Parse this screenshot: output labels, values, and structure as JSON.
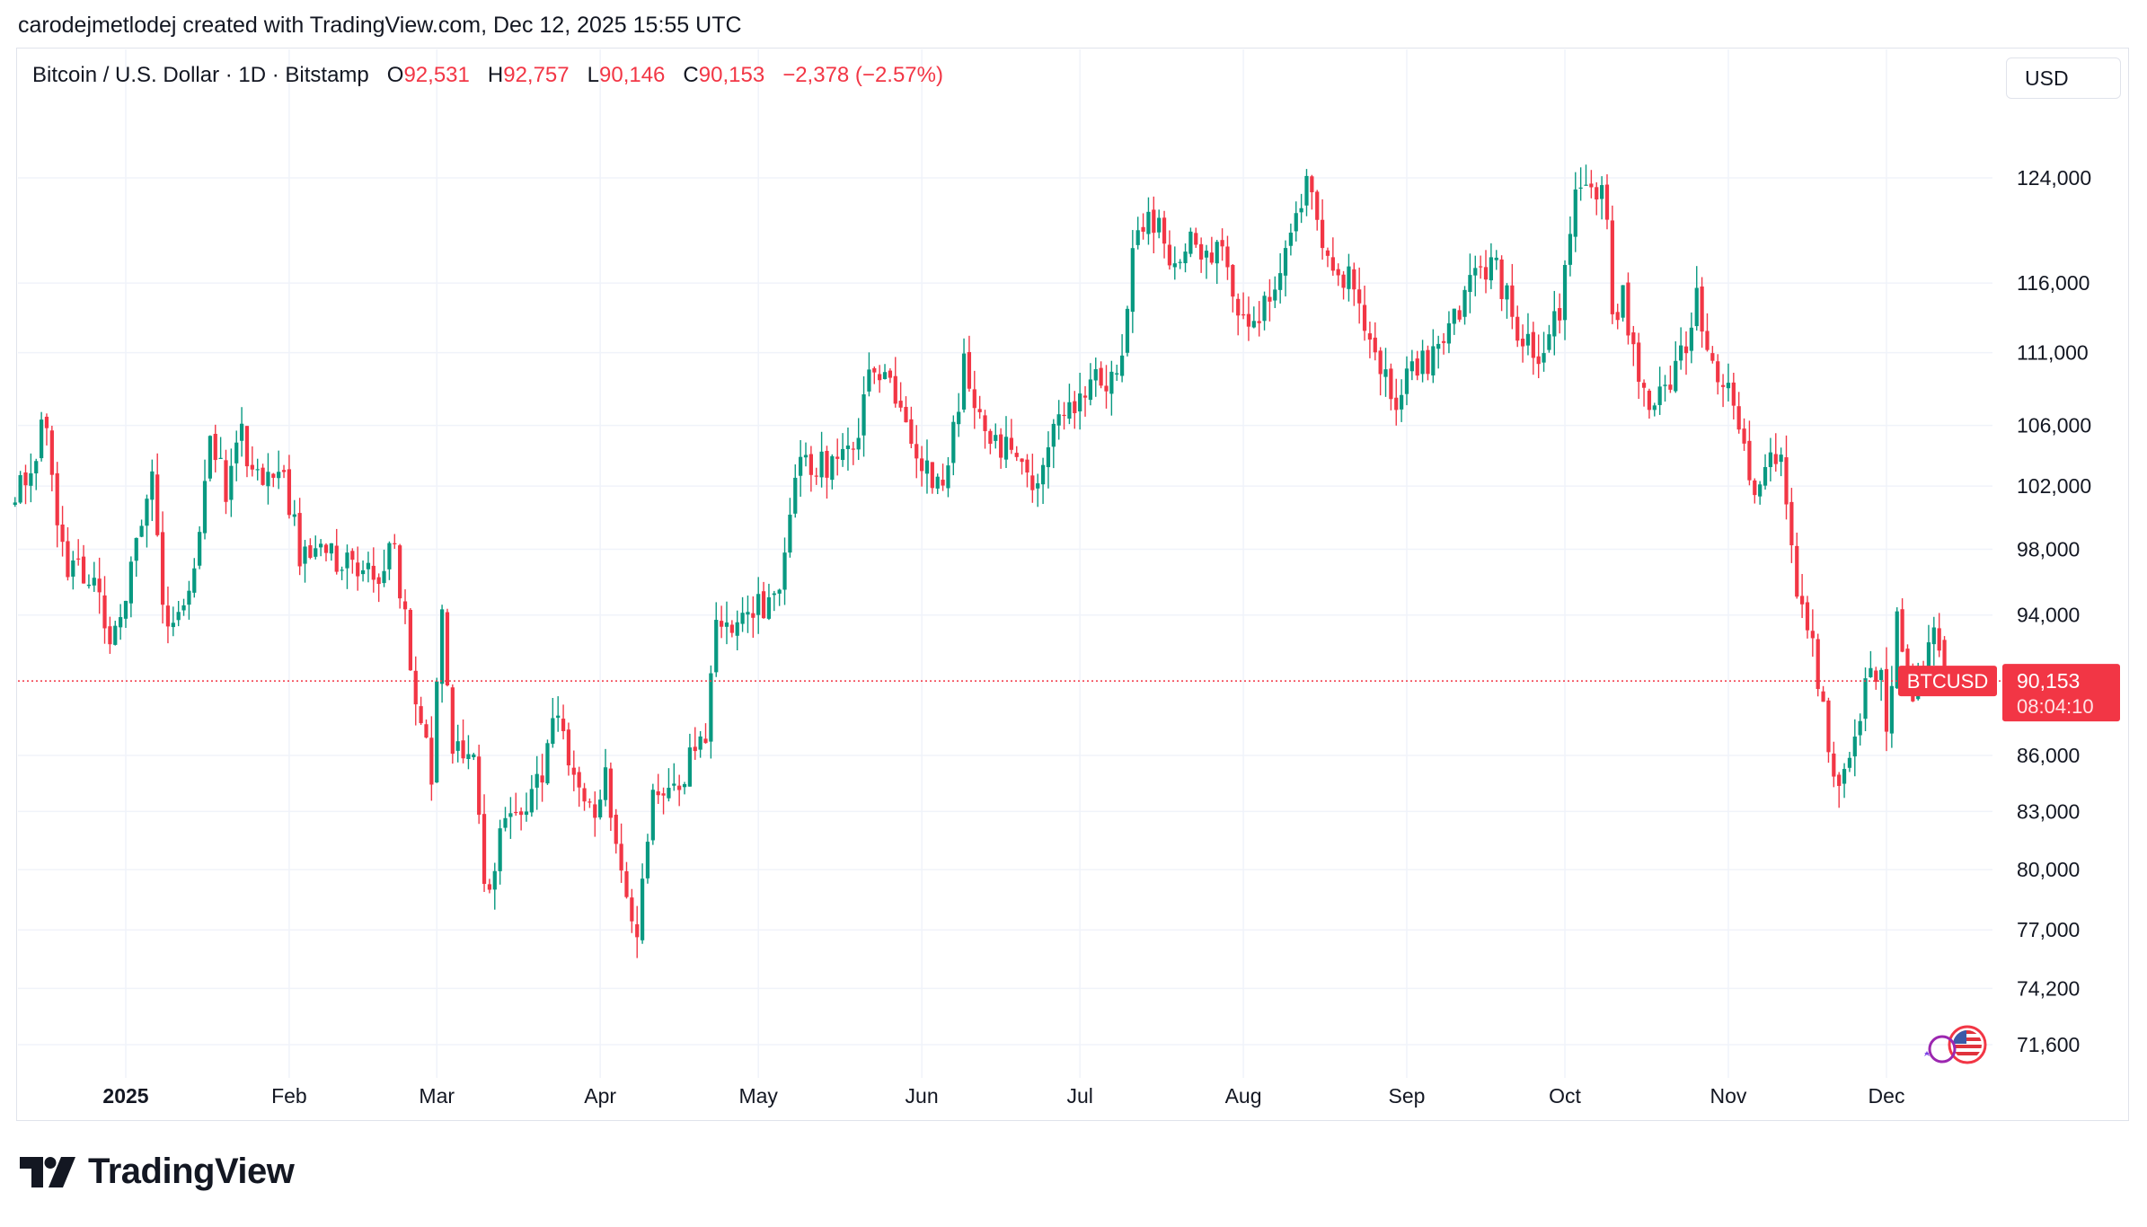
{
  "header": {
    "attribution": "carodejmetlodej created with TradingView.com, Dec 12, 2025 15:55 UTC"
  },
  "legend": {
    "symbol": "Bitcoin / U.S. Dollar · 1D · Bitstamp",
    "o_label": "O",
    "o_value": "92,531",
    "h_label": "H",
    "h_value": "92,757",
    "l_label": "L",
    "l_value": "90,146",
    "c_label": "C",
    "c_value": "90,153",
    "change": "−2,378 (−2.57%)"
  },
  "currency_button": "USD",
  "brand": {
    "name": "TradingView"
  },
  "colors": {
    "up": "#089981",
    "down": "#f23645",
    "grid": "#f0f3fa",
    "text": "#131722"
  },
  "icons": {
    "logo": "tradingview-logo-icon",
    "flag": "us-flag-icon",
    "moon": "crescent-moon-icon"
  },
  "chart_data": {
    "type": "candlestick",
    "title": "Bitcoin / U.S. Dollar · 1D · Bitstamp",
    "y_scale": "log",
    "ylim": [
      69500,
      130000
    ],
    "y_ticks": [
      71600,
      74200,
      77000,
      80000,
      83000,
      86000,
      94000,
      98000,
      102000,
      106000,
      111000,
      116000,
      124000
    ],
    "y_tick_labels": [
      "71,600",
      "74,200",
      "77,000",
      "80,000",
      "83,000",
      "86,000",
      "94,000",
      "98,000",
      "102,000",
      "106,000",
      "111,000",
      "116,000",
      "124,000"
    ],
    "x_tick_labels": [
      "2025",
      "Feb",
      "Mar",
      "Apr",
      "May",
      "Jun",
      "Jul",
      "Aug",
      "Sep",
      "Oct",
      "Nov",
      "Dec"
    ],
    "x_tick_dates": [
      "2025-01-01",
      "2025-02-01",
      "2025-03-01",
      "2025-04-01",
      "2025-05-01",
      "2025-06-01",
      "2025-07-01",
      "2025-08-01",
      "2025-09-01",
      "2025-10-01",
      "2025-11-01",
      "2025-12-01"
    ],
    "date_range": [
      "2024-12-11",
      "2025-12-12"
    ],
    "last_price": {
      "symbol": "BTCUSD",
      "value": 90153,
      "label": "90,153",
      "countdown": "08:04:10"
    },
    "close_path": [
      [
        "2024-12-11",
        101000
      ],
      [
        "2024-12-17",
        106500
      ],
      [
        "2024-12-20",
        97500
      ],
      [
        "2024-12-26",
        95500
      ],
      [
        "2024-12-30",
        92500
      ],
      [
        "2025-01-06",
        102000
      ],
      [
        "2025-01-09",
        92500
      ],
      [
        "2025-01-13",
        94500
      ],
      [
        "2025-01-17",
        104500
      ],
      [
        "2025-01-20",
        102000
      ],
      [
        "2025-01-22",
        106000
      ],
      [
        "2025-01-27",
        102000
      ],
      [
        "2025-01-31",
        102500
      ],
      [
        "2025-02-03",
        98000
      ],
      [
        "2025-02-10",
        97500
      ],
      [
        "2025-02-18",
        96000
      ],
      [
        "2025-02-21",
        98000
      ],
      [
        "2025-02-24",
        91500
      ],
      [
        "2025-02-28",
        84500
      ],
      [
        "2025-03-02",
        94500
      ],
      [
        "2025-03-04",
        86500
      ],
      [
        "2025-03-08",
        86000
      ],
      [
        "2025-03-10",
        78500
      ],
      [
        "2025-03-13",
        81500
      ],
      [
        "2025-03-20",
        84500
      ],
      [
        "2025-03-24",
        88000
      ],
      [
        "2025-03-28",
        84000
      ],
      [
        "2025-03-31",
        82500
      ],
      [
        "2025-04-02",
        85000
      ],
      [
        "2025-04-06",
        78500
      ],
      [
        "2025-04-08",
        76500
      ],
      [
        "2025-04-11",
        83500
      ],
      [
        "2025-04-16",
        84500
      ],
      [
        "2025-04-21",
        87500
      ],
      [
        "2025-04-23",
        93500
      ],
      [
        "2025-04-30",
        94500
      ],
      [
        "2025-05-05",
        94500
      ],
      [
        "2025-05-08",
        103000
      ],
      [
        "2025-05-15",
        103500
      ],
      [
        "2025-05-20",
        106000
      ],
      [
        "2025-05-22",
        111000
      ],
      [
        "2025-05-26",
        109500
      ],
      [
        "2025-05-31",
        104500
      ],
      [
        "2025-06-05",
        101500
      ],
      [
        "2025-06-09",
        110000
      ],
      [
        "2025-06-13",
        105500
      ],
      [
        "2025-06-18",
        104500
      ],
      [
        "2025-06-22",
        101000
      ],
      [
        "2025-06-26",
        107000
      ],
      [
        "2025-06-30",
        107500
      ],
      [
        "2025-07-03",
        109500
      ],
      [
        "2025-07-08",
        108500
      ],
      [
        "2025-07-11",
        117500
      ],
      [
        "2025-07-14",
        121500
      ],
      [
        "2025-07-18",
        118000
      ],
      [
        "2025-07-22",
        119500
      ],
      [
        "2025-07-28",
        118000
      ],
      [
        "2025-08-02",
        112500
      ],
      [
        "2025-08-08",
        117000
      ],
      [
        "2025-08-13",
        123300
      ],
      [
        "2025-08-18",
        116000
      ],
      [
        "2025-08-22",
        116500
      ],
      [
        "2025-08-26",
        110000
      ],
      [
        "2025-08-30",
        108000
      ],
      [
        "2025-09-01",
        109500
      ],
      [
        "2025-09-07",
        111000
      ],
      [
        "2025-09-13",
        115900
      ],
      [
        "2025-09-18",
        117000
      ],
      [
        "2025-09-22",
        112800
      ],
      [
        "2025-09-26",
        109500
      ],
      [
        "2025-09-30",
        114000
      ],
      [
        "2025-10-03",
        122500
      ],
      [
        "2025-10-06",
        124500
      ],
      [
        "2025-10-09",
        121000
      ],
      [
        "2025-10-10",
        113000
      ],
      [
        "2025-10-12",
        115000
      ],
      [
        "2025-10-17",
        106500
      ],
      [
        "2025-10-21",
        108500
      ],
      [
        "2025-10-26",
        114500
      ],
      [
        "2025-10-29",
        110000
      ],
      [
        "2025-11-03",
        106500
      ],
      [
        "2025-11-05",
        101500
      ],
      [
        "2025-11-09",
        104500
      ],
      [
        "2025-11-11",
        103000
      ],
      [
        "2025-11-14",
        94500
      ],
      [
        "2025-11-17",
        92000
      ],
      [
        "2025-11-21",
        84500
      ],
      [
        "2025-11-25",
        87500
      ],
      [
        "2025-11-28",
        91500
      ],
      [
        "2025-11-30",
        90500
      ],
      [
        "2025-12-01",
        86500
      ],
      [
        "2025-12-03",
        93500
      ],
      [
        "2025-12-05",
        89500
      ],
      [
        "2025-12-08",
        90600
      ],
      [
        "2025-12-09",
        92700
      ],
      [
        "2025-12-10",
        92300
      ],
      [
        "2025-12-11",
        92531
      ],
      [
        "2025-12-12",
        90153
      ]
    ],
    "last_candle": {
      "date": "2025-12-12",
      "open": 92531,
      "high": 92757,
      "low": 90146,
      "close": 90153
    },
    "notable_extremes": {
      "max_high_approx": 126000,
      "max_high_date": "2025-10-06",
      "min_low_approx": 74500,
      "min_low_date": "2025-04-07"
    }
  }
}
